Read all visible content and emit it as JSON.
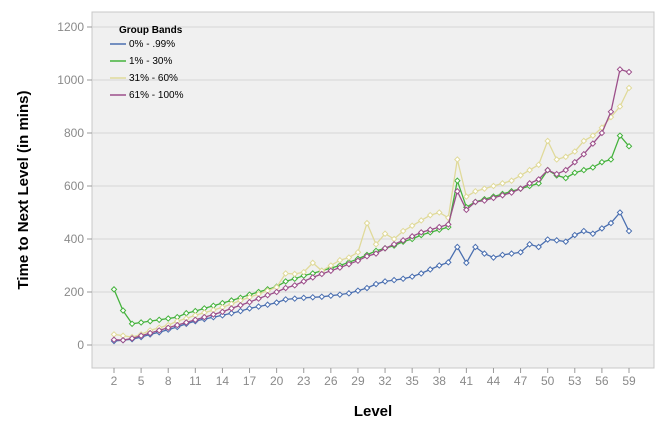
{
  "chart_data": {
    "type": "line",
    "xlabel": "Level",
    "ylabel": "Time to Next Level (in mins)",
    "xlim": [
      2,
      59
    ],
    "ylim": [
      0,
      1200
    ],
    "y_ticks": [
      "0",
      "200",
      "400",
      "600",
      "800",
      "1000",
      "1200"
    ],
    "x_ticks": [
      "2",
      "5",
      "8",
      "11",
      "14",
      "17",
      "20",
      "23",
      "26",
      "29",
      "32",
      "35",
      "38",
      "41",
      "44",
      "47",
      "50",
      "53",
      "56",
      "59"
    ],
    "grid": true,
    "legend": {
      "title": "Group Bands",
      "placement": "top-left"
    },
    "x": [
      2,
      3,
      4,
      5,
      6,
      7,
      8,
      9,
      10,
      11,
      12,
      13,
      14,
      15,
      16,
      17,
      18,
      19,
      20,
      21,
      22,
      23,
      24,
      25,
      26,
      27,
      28,
      29,
      30,
      31,
      32,
      33,
      34,
      35,
      36,
      37,
      38,
      39,
      40,
      41,
      42,
      43,
      44,
      45,
      46,
      47,
      48,
      49,
      50,
      51,
      52,
      53,
      54,
      55,
      56,
      57,
      58,
      59
    ],
    "series": [
      {
        "name": "0% - .99%",
        "color": "#4a6fb0",
        "values": [
          15,
          18,
          22,
          30,
          40,
          48,
          58,
          68,
          80,
          90,
          98,
          105,
          112,
          120,
          128,
          138,
          145,
          152,
          160,
          172,
          175,
          178,
          180,
          182,
          186,
          190,
          195,
          205,
          215,
          230,
          240,
          245,
          250,
          258,
          270,
          285,
          300,
          312,
          370,
          310,
          370,
          345,
          330,
          340,
          345,
          350,
          380,
          370,
          398,
          395,
          390,
          415,
          430,
          420,
          440,
          460,
          500,
          430
        ]
      },
      {
        "name": "1% - 30%",
        "color": "#44b23c",
        "values": [
          210,
          130,
          80,
          85,
          90,
          95,
          100,
          105,
          120,
          128,
          138,
          148,
          158,
          168,
          178,
          190,
          200,
          210,
          220,
          240,
          250,
          262,
          270,
          280,
          290,
          300,
          312,
          325,
          340,
          355,
          365,
          375,
          390,
          400,
          415,
          425,
          435,
          445,
          620,
          520,
          540,
          550,
          560,
          570,
          580,
          590,
          600,
          610,
          660,
          640,
          630,
          650,
          660,
          670,
          690,
          700,
          790,
          750
        ]
      },
      {
        "name": "31% - 60%",
        "color": "#e0da9a",
        "values": [
          40,
          35,
          30,
          40,
          55,
          65,
          75,
          90,
          100,
          112,
          122,
          132,
          142,
          155,
          168,
          180,
          192,
          205,
          218,
          270,
          268,
          275,
          310,
          280,
          300,
          320,
          330,
          350,
          460,
          380,
          420,
          400,
          430,
          450,
          470,
          490,
          500,
          480,
          700,
          560,
          580,
          590,
          600,
          610,
          620,
          640,
          660,
          680,
          770,
          700,
          710,
          730,
          770,
          790,
          820,
          860,
          900,
          970
        ]
      },
      {
        "name": "61% - 100%",
        "color": "#9c4f8a",
        "values": [
          20,
          18,
          25,
          35,
          45,
          55,
          65,
          75,
          85,
          95,
          105,
          115,
          125,
          138,
          150,
          162,
          175,
          188,
          200,
          215,
          225,
          240,
          255,
          268,
          280,
          292,
          305,
          318,
          335,
          345,
          365,
          380,
          395,
          410,
          425,
          435,
          445,
          455,
          580,
          510,
          540,
          545,
          555,
          565,
          575,
          590,
          610,
          625,
          660,
          645,
          660,
          690,
          720,
          760,
          800,
          880,
          1040,
          1030
        ]
      }
    ]
  }
}
